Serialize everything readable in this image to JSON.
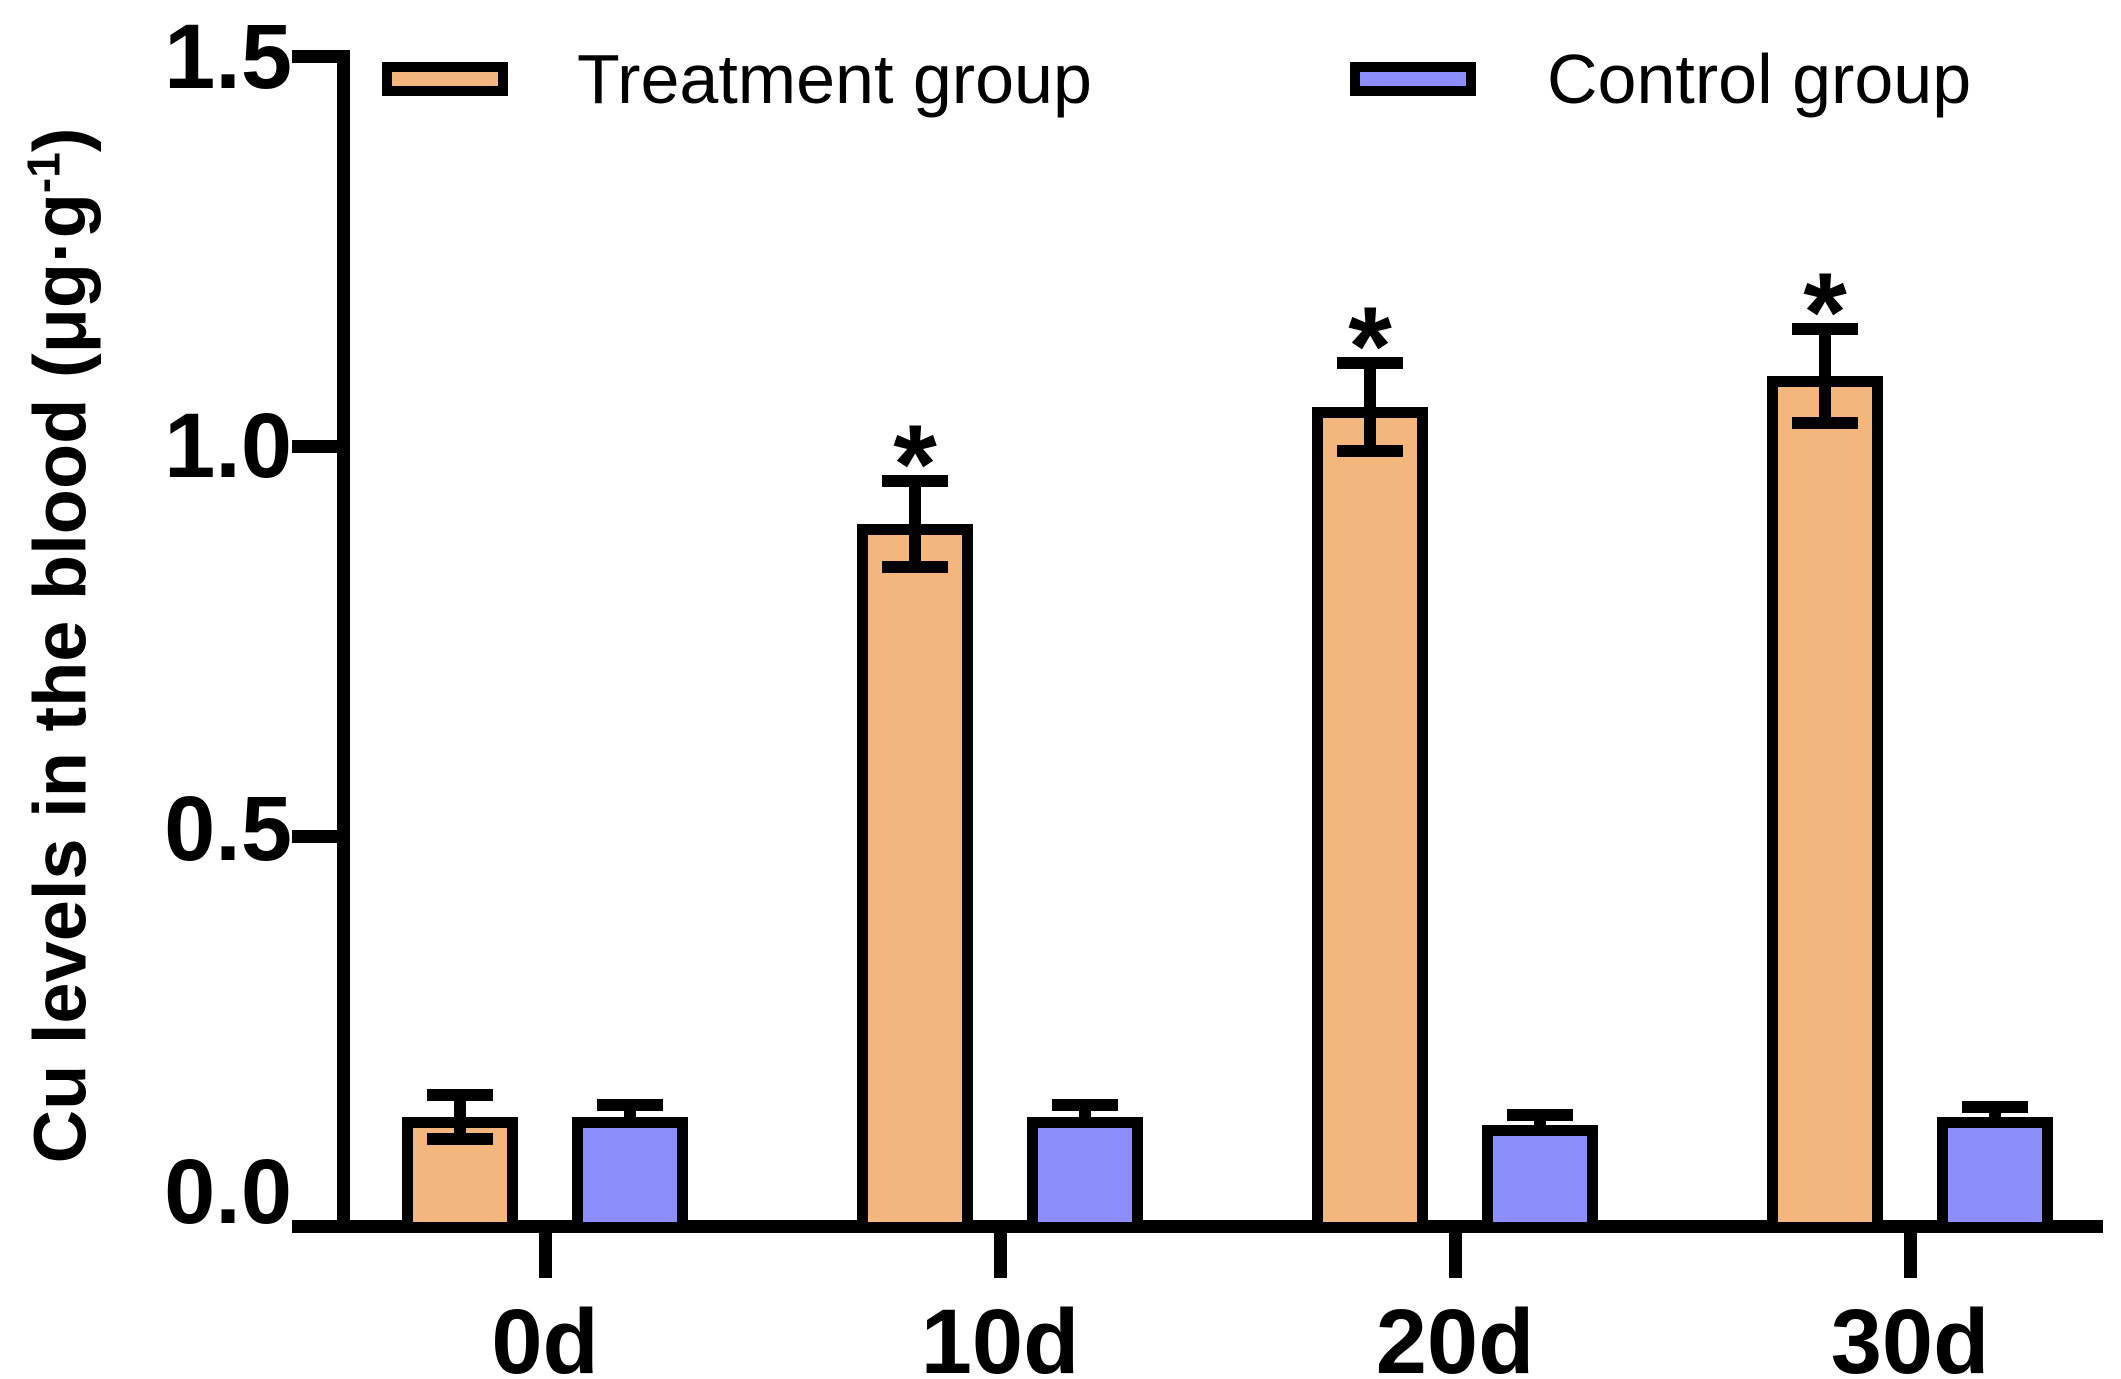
{
  "figure": {
    "background": "#ffffff",
    "axis_color": "#000000"
  },
  "y_axis": {
    "label_prefix": "Cu levels in the blood (μg·g",
    "label_superscript": "-1",
    "label_suffix": ")",
    "tick_labels": [
      "0.0",
      "0.5",
      "1.0",
      "1.5"
    ],
    "min": 0.0,
    "max": 1.5
  },
  "x_axis": {
    "categories": [
      "0d",
      "10d",
      "20d",
      "30d"
    ]
  },
  "legend": {
    "items": [
      "Treatment group",
      "Control group"
    ],
    "position": "top"
  },
  "chart_data": {
    "type": "bar",
    "title": "",
    "categories": [
      "0d",
      "10d",
      "20d",
      "30d"
    ],
    "series": [
      {
        "name": "Treatment group",
        "color": "#F3B77E",
        "values": [
          0.14,
          0.9,
          1.05,
          1.09
        ],
        "errors": [
          0.028,
          0.055,
          0.057,
          0.06
        ],
        "significance": [
          "",
          "*",
          "*",
          "*"
        ]
      },
      {
        "name": "Control group",
        "color": "#8C8EFC",
        "values": [
          0.14,
          0.14,
          0.13,
          0.14
        ],
        "errors": [
          0.015,
          0.015,
          0.012,
          0.012
        ],
        "significance": [
          "",
          "",
          "",
          ""
        ]
      }
    ],
    "xlabel": "",
    "ylabel": "Cu levels in the blood (μg·g⁻¹)",
    "ylim": [
      0,
      1.5
    ],
    "yticks": [
      0.0,
      0.5,
      1.0,
      1.5
    ],
    "bar_border_color": "#000000",
    "error_bar_style": "caps-both-ends",
    "grid": "off",
    "legend_position": "top"
  }
}
